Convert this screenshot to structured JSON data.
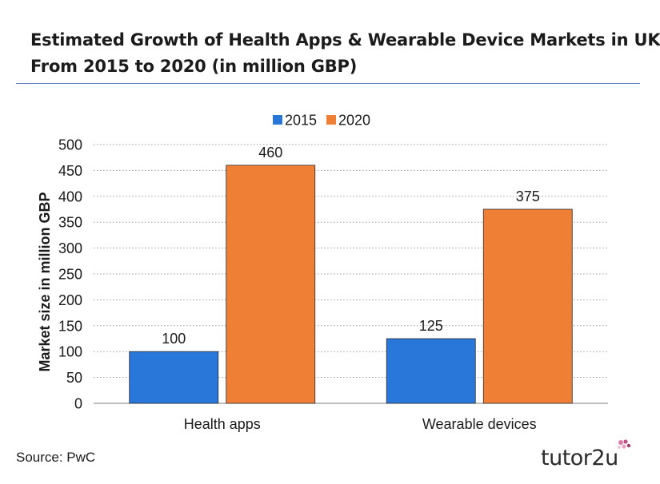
{
  "title_lines": [
    "Estimated Growth of Health Apps & Wearable Device Markets in UK",
    "From 2015 to 2020 (in million GBP)"
  ],
  "source": "Source: PwC",
  "brand": "tutor2u",
  "colors": {
    "series_2015": "#2a77da",
    "series_2020": "#ee7f34",
    "rule": "#5b7fc4",
    "grid": "#9a9a9a"
  },
  "chart_data": {
    "type": "bar",
    "title": "Estimated Growth of Health Apps & Wearable Device Markets in UK From 2015 to 2020 (in million GBP)",
    "categories": [
      "Health apps",
      "Wearable devices"
    ],
    "series": [
      {
        "name": "2015",
        "values": [
          100,
          125
        ]
      },
      {
        "name": "2020",
        "values": [
          460,
          375
        ]
      }
    ],
    "xlabel": "",
    "ylabel": "Market size in million GBP",
    "ylim": [
      0,
      500
    ],
    "yticks": [
      0,
      50,
      100,
      150,
      200,
      250,
      300,
      350,
      400,
      450,
      500
    ],
    "grid": true,
    "legend": "top-center"
  }
}
